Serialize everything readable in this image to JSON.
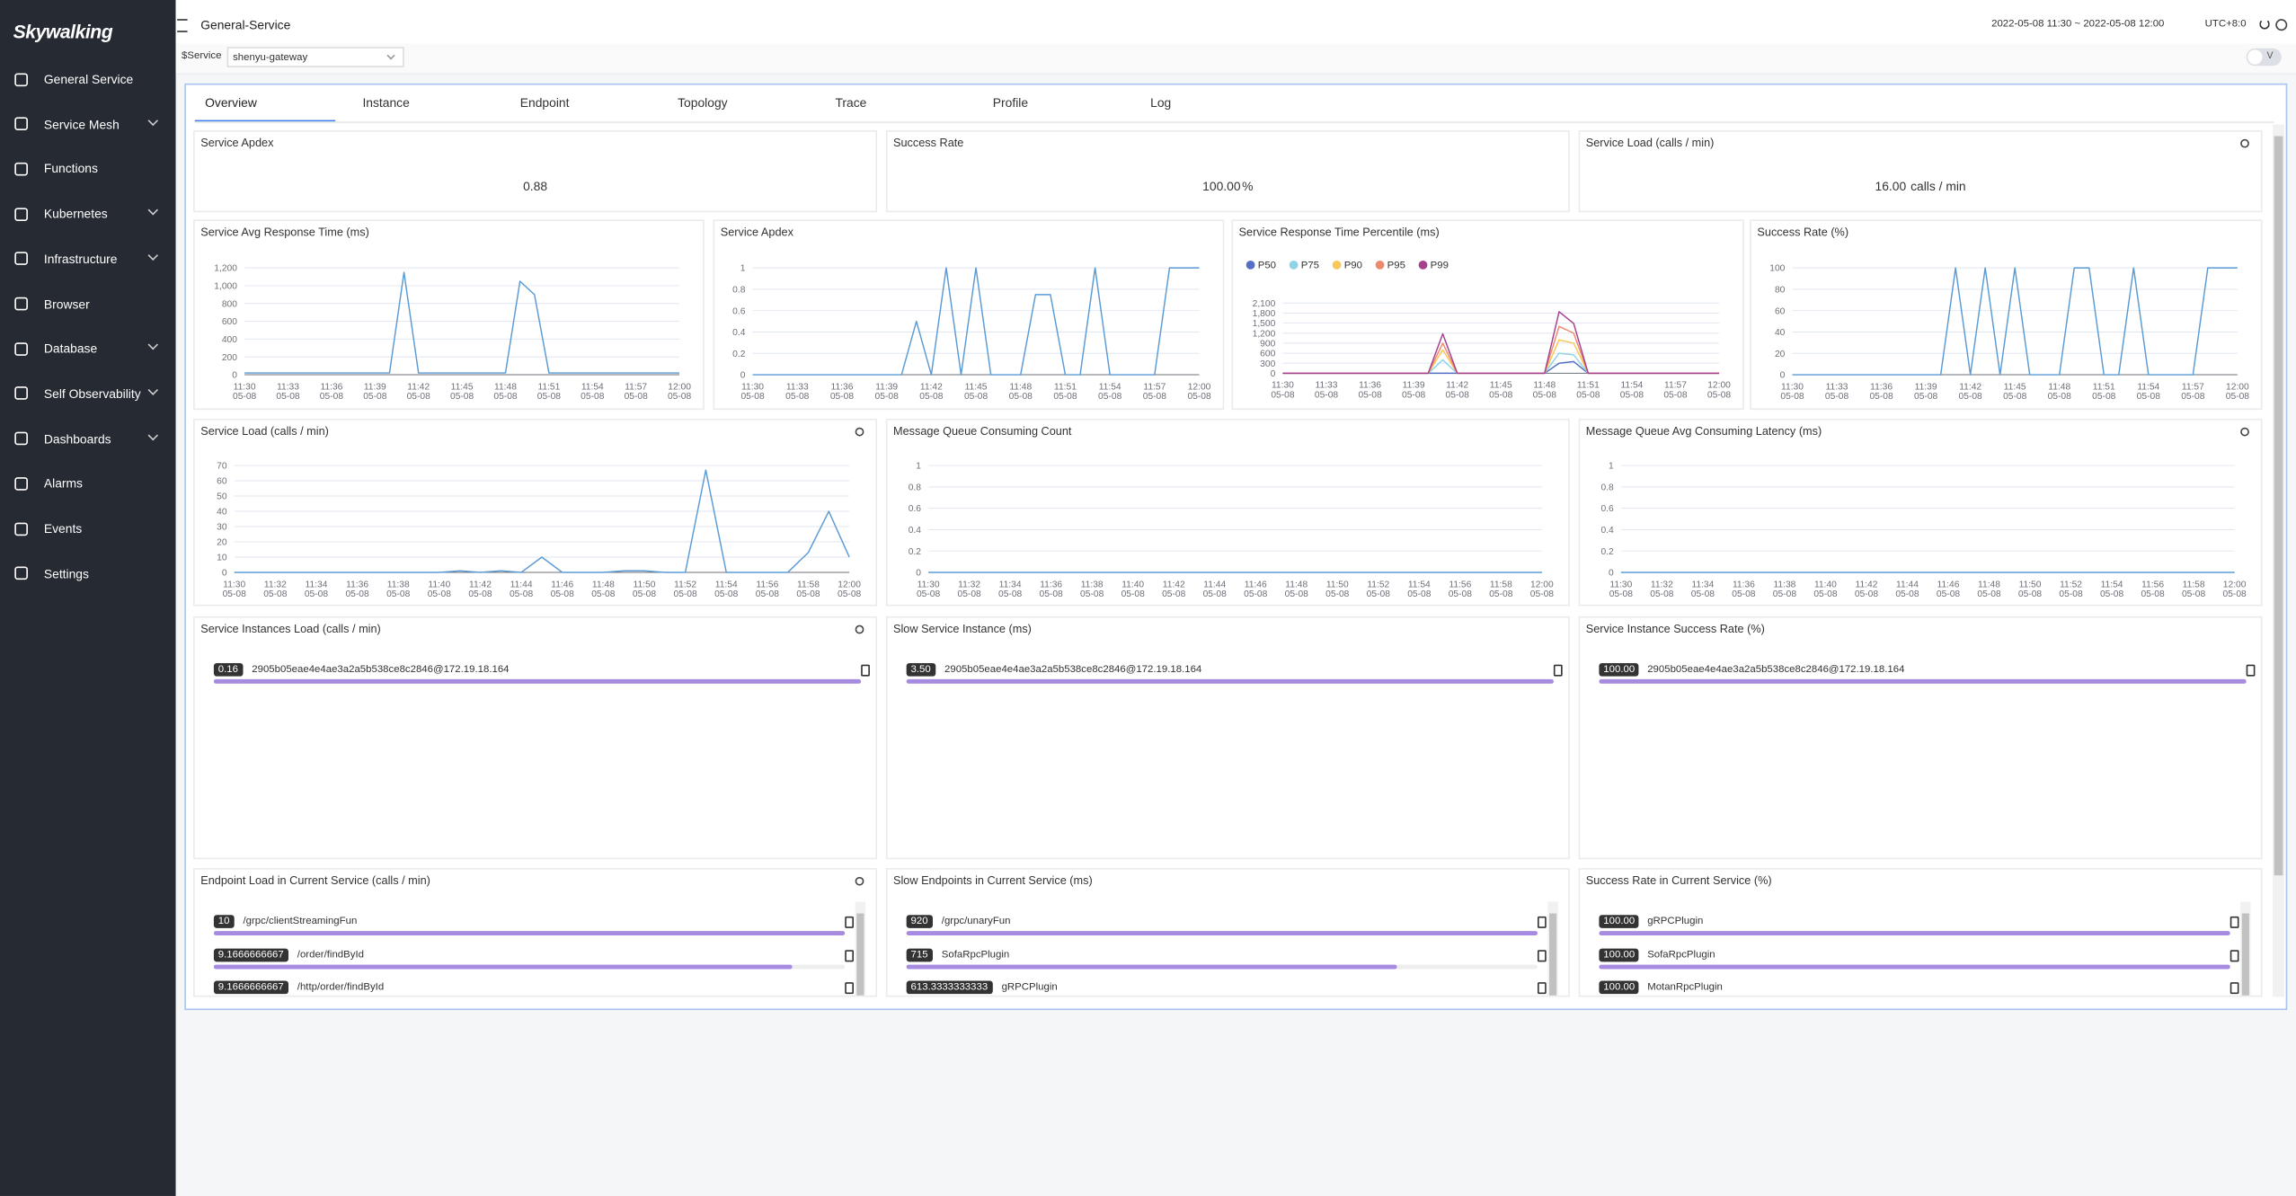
{
  "sidebar": {
    "logo": "Skywalking",
    "menu": [
      "General Service",
      "Service Mesh",
      "Functions",
      "Kubernetes",
      "Infrastructure",
      "Browser",
      "Database",
      "Self Observability",
      "Dashboards",
      "Alarms",
      "Events",
      "Settings"
    ]
  },
  "header": {
    "title": "General-Service",
    "time_range": "2022-05-08 11:30 ~ 2022-05-08 12:00",
    "timezone": "UTC+8:0"
  },
  "filter": {
    "label": "$Service",
    "value": "shenyu-gateway",
    "toggle": "V"
  },
  "tabs": [
    "Overview",
    "Instance",
    "Endpoint",
    "Topology",
    "Trace",
    "Profile",
    "Log"
  ],
  "cards": [
    {
      "title": "Service Apdex",
      "value": "0.88"
    },
    {
      "title": "Success Rate",
      "value": "100.00",
      "unit": "%"
    },
    {
      "title": "Service Load (calls / min)",
      "value": "16.00",
      "unit": "calls / min"
    }
  ],
  "chart_data": [
    {
      "type": "line",
      "title": "Service Avg Response Time (ms)",
      "categories": [
        "11:30",
        null,
        null,
        "11:33",
        null,
        null,
        "11:36",
        null,
        null,
        "11:39",
        null,
        null,
        "11:42",
        null,
        null,
        "11:45",
        null,
        null,
        "11:48",
        null,
        null,
        "11:51",
        null,
        null,
        "11:54",
        null,
        null,
        "11:57",
        null,
        null,
        "12:00"
      ],
      "x_sublabel": "05-08",
      "series": [
        {
          "name": "Service Avg Response Time",
          "color": "#5b9bd5",
          "values": [
            20,
            20,
            20,
            20,
            20,
            20,
            20,
            20,
            20,
            20,
            20,
            1150,
            20,
            20,
            20,
            20,
            20,
            20,
            20,
            1050,
            900,
            20,
            20,
            20,
            20,
            20,
            20,
            20,
            20,
            20,
            20
          ]
        }
      ],
      "ylim": [
        0,
        1200
      ],
      "yticks": [
        0,
        200,
        400,
        600,
        800,
        {
          "value": 1000,
          "label": "1,000"
        },
        {
          "value": 1200,
          "label": "1,200"
        }
      ],
      "grid": true
    },
    {
      "type": "line",
      "title": "Service Apdex",
      "categories": [
        "11:30",
        null,
        null,
        "11:33",
        null,
        null,
        "11:36",
        null,
        null,
        "11:39",
        null,
        null,
        "11:42",
        null,
        null,
        "11:45",
        null,
        null,
        "11:48",
        null,
        null,
        "11:51",
        null,
        null,
        "11:54",
        null,
        null,
        "11:57",
        null,
        null,
        "12:00"
      ],
      "x_sublabel": "05-08",
      "series": [
        {
          "name": "Service Apdex",
          "color": "#5b9bd5",
          "values": [
            0,
            0,
            0,
            0,
            0,
            0,
            0,
            0,
            0,
            0,
            0,
            0.5,
            0,
            1,
            0,
            1,
            0,
            0,
            0,
            0.75,
            0.75,
            0,
            0,
            1,
            0,
            0,
            0,
            0,
            1,
            1,
            1
          ]
        }
      ],
      "ylim": [
        0,
        1
      ],
      "yticks": [
        0,
        0.2,
        0.4,
        0.6,
        0.8,
        1
      ],
      "grid": true
    },
    {
      "type": "line",
      "title": "Service Response Time Percentile (ms)",
      "categories": [
        "11:30",
        null,
        null,
        "11:33",
        null,
        null,
        "11:36",
        null,
        null,
        "11:39",
        null,
        null,
        "11:42",
        null,
        null,
        "11:45",
        null,
        null,
        "11:48",
        null,
        null,
        "11:51",
        null,
        null,
        "11:54",
        null,
        null,
        "11:57",
        null,
        null,
        "12:00"
      ],
      "x_sublabel": "05-08",
      "series": [
        {
          "name": "P50",
          "color": "#5470c6",
          "values": [
            0,
            0,
            0,
            0,
            0,
            0,
            0,
            0,
            0,
            0,
            0,
            0,
            0,
            0,
            0,
            0,
            0,
            0,
            0,
            300,
            350,
            0,
            0,
            0,
            0,
            0,
            0,
            0,
            0,
            0,
            0
          ]
        },
        {
          "name": "P75",
          "color": "#8fd3e8",
          "values": [
            0,
            0,
            0,
            0,
            0,
            0,
            0,
            0,
            0,
            0,
            0,
            400,
            0,
            0,
            0,
            0,
            0,
            0,
            0,
            600,
            550,
            0,
            0,
            0,
            0,
            0,
            0,
            0,
            0,
            0,
            0
          ]
        },
        {
          "name": "P90",
          "color": "#fac858",
          "values": [
            0,
            0,
            0,
            0,
            0,
            0,
            0,
            0,
            0,
            0,
            0,
            700,
            0,
            0,
            0,
            0,
            0,
            0,
            0,
            1000,
            900,
            0,
            0,
            0,
            0,
            0,
            0,
            0,
            0,
            0,
            0
          ]
        },
        {
          "name": "P95",
          "color": "#ee8a6b",
          "values": [
            0,
            0,
            0,
            0,
            0,
            0,
            0,
            0,
            0,
            0,
            0,
            900,
            0,
            0,
            0,
            0,
            0,
            0,
            0,
            1400,
            1200,
            0,
            0,
            0,
            0,
            0,
            0,
            0,
            0,
            0,
            0
          ]
        },
        {
          "name": "P99",
          "color": "#a5418f",
          "values": [
            0,
            0,
            0,
            0,
            0,
            0,
            0,
            0,
            0,
            0,
            0,
            1180,
            0,
            0,
            0,
            0,
            0,
            0,
            0,
            1840,
            1490,
            0,
            0,
            0,
            0,
            0,
            0,
            0,
            0,
            0,
            0
          ]
        }
      ],
      "ylim": [
        0,
        2100
      ],
      "yticks": [
        0,
        300,
        600,
        900,
        {
          "value": 1200,
          "label": "1,200"
        },
        {
          "value": 1500,
          "label": "1,500"
        },
        {
          "value": 1800,
          "label": "1,800"
        },
        {
          "value": 2100,
          "label": "2,100"
        }
      ],
      "grid": true,
      "legend": "top-left"
    },
    {
      "type": "line",
      "title": "Success Rate (%)",
      "categories": [
        "11:30",
        null,
        null,
        "11:33",
        null,
        null,
        "11:36",
        null,
        null,
        "11:39",
        null,
        null,
        "11:42",
        null,
        null,
        "11:45",
        null,
        null,
        "11:48",
        null,
        null,
        "11:51",
        null,
        null,
        "11:54",
        null,
        null,
        "11:57",
        null,
        null,
        "12:00"
      ],
      "x_sublabel": "05-08",
      "series": [
        {
          "name": "Success Rate",
          "color": "#5b9bd5",
          "values": [
            0,
            0,
            0,
            0,
            0,
            0,
            0,
            0,
            0,
            0,
            0,
            100,
            0,
            100,
            0,
            100,
            0,
            0,
            0,
            100,
            100,
            0,
            0,
            100,
            0,
            0,
            0,
            0,
            100,
            100,
            100
          ]
        }
      ],
      "ylim": [
        0,
        100
      ],
      "yticks": [
        0,
        20,
        40,
        60,
        80,
        100
      ],
      "grid": true
    },
    {
      "type": "line",
      "title": "Service Load (calls / min)",
      "categories": [
        "11:30",
        null,
        "11:32",
        null,
        "11:34",
        null,
        "11:36",
        null,
        "11:38",
        null,
        "11:40",
        null,
        "11:42",
        null,
        "11:44",
        null,
        "11:46",
        null,
        "11:48",
        null,
        "11:50",
        null,
        "11:52",
        null,
        "11:54",
        null,
        "11:56",
        null,
        "11:58",
        null,
        "12:00"
      ],
      "x_sublabel": "05-08",
      "series": [
        {
          "name": "Service Load",
          "color": "#5b9bd5",
          "values": [
            0,
            0,
            0,
            0,
            0,
            0,
            0,
            0,
            0,
            0,
            0,
            1,
            0,
            1,
            0,
            10,
            0,
            0,
            0,
            1,
            1,
            0,
            0,
            67,
            0,
            0,
            0,
            0,
            13,
            40,
            10
          ]
        }
      ],
      "ylim": [
        0,
        70
      ],
      "yticks": [
        0,
        10,
        20,
        30,
        40,
        50,
        60,
        70
      ],
      "grid": true
    },
    {
      "type": "line",
      "title": "Message Queue Consuming Count",
      "categories": [
        "11:30",
        null,
        "11:32",
        null,
        "11:34",
        null,
        "11:36",
        null,
        "11:38",
        null,
        "11:40",
        null,
        "11:42",
        null,
        "11:44",
        null,
        "11:46",
        null,
        "11:48",
        null,
        "11:50",
        null,
        "11:52",
        null,
        "11:54",
        null,
        "11:56",
        null,
        "11:58",
        null,
        "12:00"
      ],
      "x_sublabel": "05-08",
      "series": [
        {
          "name": "Message Queue Consuming Count",
          "color": "#5b9bd5",
          "values": [
            0,
            0,
            0,
            0,
            0,
            0,
            0,
            0,
            0,
            0,
            0,
            0,
            0,
            0,
            0,
            0,
            0,
            0,
            0,
            0,
            0,
            0,
            0,
            0,
            0,
            0,
            0,
            0,
            0,
            0,
            0
          ]
        }
      ],
      "ylim": [
        0,
        1
      ],
      "yticks": [
        0,
        0.2,
        0.4,
        0.6,
        0.8,
        1
      ],
      "grid": true
    },
    {
      "type": "line",
      "title": "Message Queue Avg Consuming Latency (ms)",
      "categories": [
        "11:30",
        null,
        "11:32",
        null,
        "11:34",
        null,
        "11:36",
        null,
        "11:38",
        null,
        "11:40",
        null,
        "11:42",
        null,
        "11:44",
        null,
        "11:46",
        null,
        "11:48",
        null,
        "11:50",
        null,
        "11:52",
        null,
        "11:54",
        null,
        "11:56",
        null,
        "11:58",
        null,
        "12:00"
      ],
      "x_sublabel": "05-08",
      "series": [
        {
          "name": "Message Queue Avg Consuming Latency",
          "color": "#5b9bd5",
          "values": [
            0,
            0,
            0,
            0,
            0,
            0,
            0,
            0,
            0,
            0,
            0,
            0,
            0,
            0,
            0,
            0,
            0,
            0,
            0,
            0,
            0,
            0,
            0,
            0,
            0,
            0,
            0,
            0,
            0,
            0,
            0
          ]
        }
      ],
      "ylim": [
        0,
        1
      ],
      "yticks": [
        0,
        0.2,
        0.4,
        0.6,
        0.8,
        1
      ],
      "grid": true
    }
  ],
  "lists": [
    {
      "title": "Service Instances Load (calls / min)",
      "items": [
        {
          "value": 0.16,
          "name": "2905b05eae4e4ae3a2a5b538ce8c2846@172.19.18.164"
        }
      ]
    },
    {
      "title": "Slow Service Instance (ms)",
      "items": [
        {
          "value": 3.5,
          "value_label": "3.50",
          "name": "2905b05eae4e4ae3a2a5b538ce8c2846@172.19.18.164"
        }
      ]
    },
    {
      "title": "Service Instance Success Rate (%)",
      "items": [
        {
          "value": 100,
          "value_label": "100.00",
          "name": "2905b05eae4e4ae3a2a5b538ce8c2846@172.19.18.164"
        }
      ]
    },
    {
      "title": "Endpoint Load in Current Service (calls / min)",
      "items": [
        {
          "value": 10,
          "name": "/grpc/clientStreamingFun"
        },
        {
          "value": 9.1666666667,
          "name": "/order/findById"
        },
        {
          "value": 9.1666666667,
          "name": "/http/order/findById"
        }
      ]
    },
    {
      "title": "Slow Endpoints in Current Service (ms)",
      "items": [
        {
          "value": 920,
          "name": "/grpc/unaryFun"
        },
        {
          "value": 715,
          "name": "SofaRpcPlugin"
        },
        {
          "value": 613.3333333333,
          "name": "gRPCPlugin"
        }
      ]
    },
    {
      "title": "Success Rate in Current Service (%)",
      "items": [
        {
          "value": 100,
          "value_label": "100.00",
          "name": "gRPCPlugin"
        },
        {
          "value": 100,
          "value_label": "100.00",
          "name": "SofaRpcPlugin"
        },
        {
          "value": 100,
          "value_label": "100.00",
          "name": "MotanRpcPlugin"
        }
      ]
    }
  ]
}
